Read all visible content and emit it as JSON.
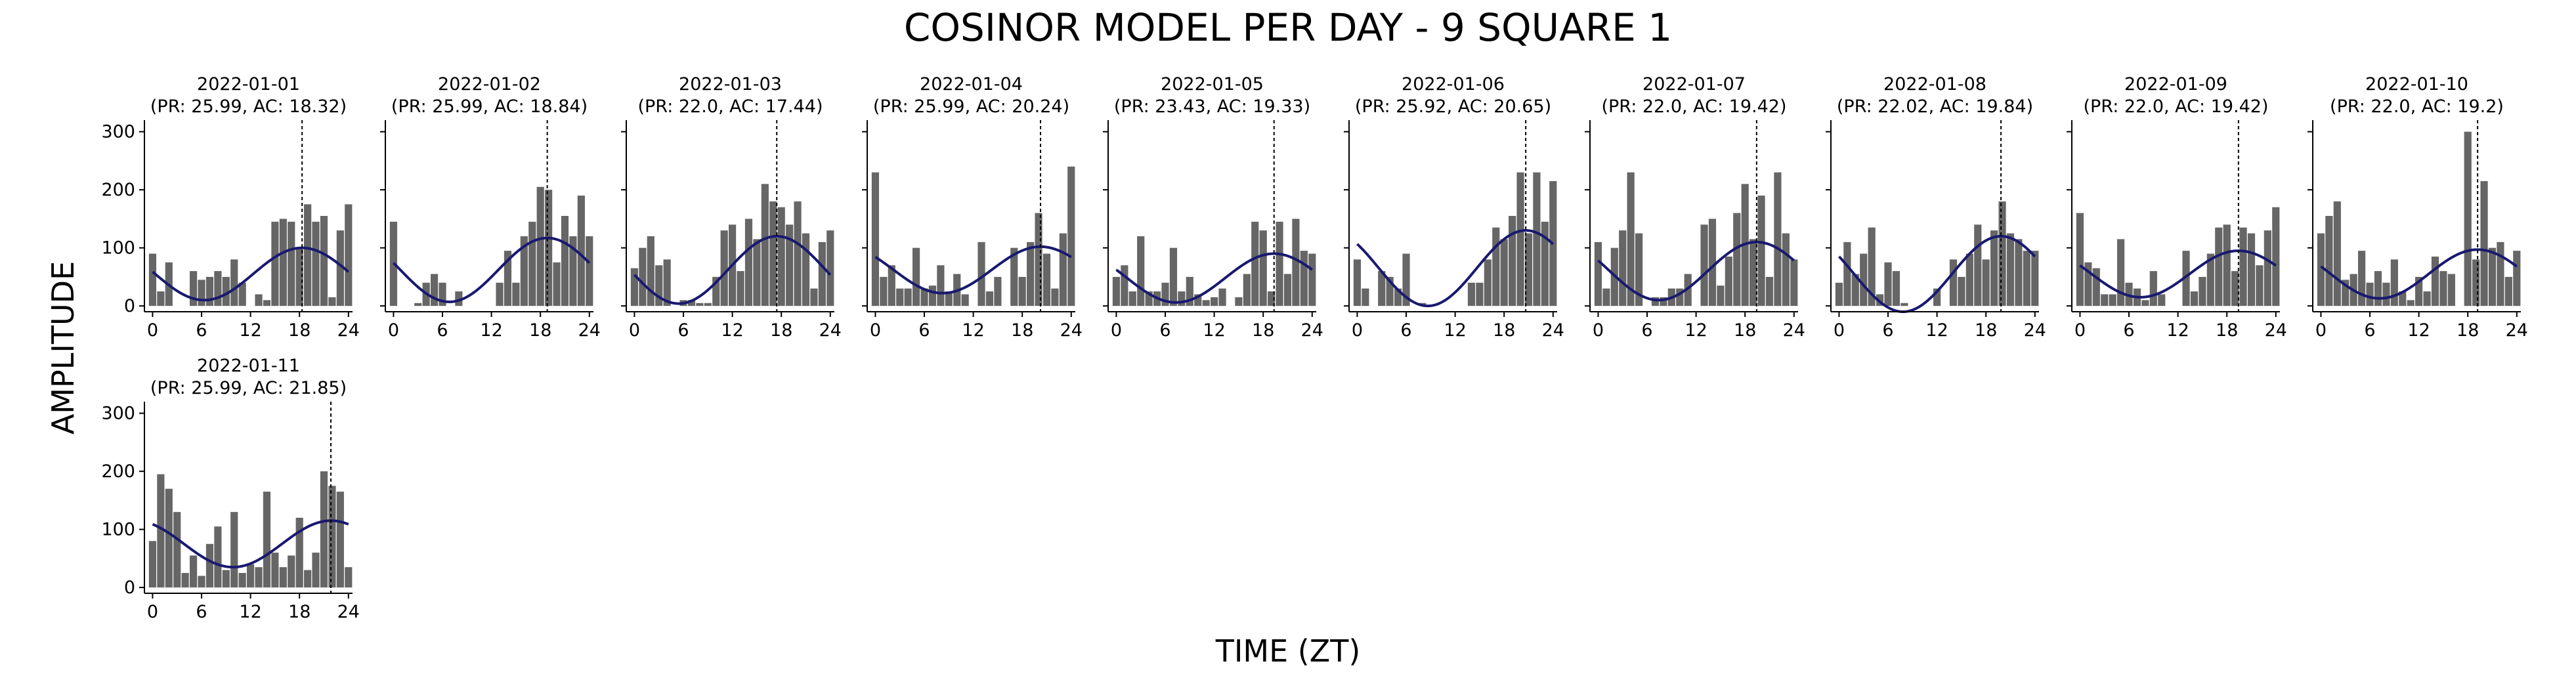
{
  "figure": {
    "title": "COSINOR MODEL PER DAY - 9 SQUARE 1",
    "xlabel": "TIME (ZT)",
    "ylabel": "AMPLITUDE"
  },
  "colors": {
    "bar": "#666666",
    "curve": "#191970",
    "marker": "#000000",
    "axis": "#000000"
  },
  "axes": {
    "x_ticks": [
      0,
      6,
      12,
      18,
      24
    ],
    "y_ticks": [
      0,
      100,
      200,
      300
    ],
    "xlim": [
      -1,
      24.5
    ],
    "ylim": [
      -10,
      320
    ]
  },
  "chart_data": [
    {
      "type": "bar",
      "date": "2022-01-01",
      "subtitle": "(PR: 25.99, AC: 18.32)",
      "x": [
        0,
        1,
        2,
        3,
        4,
        5,
        6,
        7,
        8,
        9,
        10,
        11,
        12,
        13,
        14,
        15,
        16,
        17,
        18,
        19,
        20,
        21,
        22,
        23,
        24
      ],
      "values": [
        90,
        25,
        75,
        0,
        0,
        60,
        45,
        50,
        60,
        50,
        80,
        40,
        0,
        20,
        10,
        145,
        150,
        145,
        100,
        175,
        145,
        155,
        15,
        130,
        175
      ],
      "cosinor": {
        "mesor": 55,
        "amplitude": 45,
        "acrophase": 18.32
      }
    },
    {
      "type": "bar",
      "date": "2022-01-02",
      "subtitle": "(PR: 25.99, AC: 18.84)",
      "x": [
        0,
        1,
        2,
        3,
        4,
        5,
        6,
        7,
        8,
        9,
        10,
        11,
        12,
        13,
        14,
        15,
        16,
        17,
        18,
        19,
        20,
        21,
        22,
        23,
        24
      ],
      "values": [
        145,
        0,
        0,
        5,
        40,
        55,
        40,
        0,
        25,
        0,
        0,
        0,
        0,
        40,
        95,
        40,
        120,
        145,
        205,
        200,
        75,
        155,
        120,
        190,
        120
      ],
      "cosinor": {
        "mesor": 62,
        "amplitude": 55,
        "acrophase": 18.84
      }
    },
    {
      "type": "bar",
      "date": "2022-01-03",
      "subtitle": "(PR: 22.0, AC: 17.44)",
      "x": [
        0,
        1,
        2,
        3,
        4,
        5,
        6,
        7,
        8,
        9,
        10,
        11,
        12,
        13,
        14,
        15,
        16,
        17,
        18,
        19,
        20,
        21,
        22,
        23,
        24
      ],
      "values": [
        65,
        100,
        120,
        70,
        80,
        0,
        10,
        10,
        5,
        5,
        50,
        130,
        140,
        60,
        150,
        115,
        210,
        180,
        170,
        140,
        180,
        125,
        30,
        110,
        130
      ],
      "cosinor": {
        "mesor": 62,
        "amplitude": 58,
        "acrophase": 17.44
      }
    },
    {
      "type": "bar",
      "date": "2022-01-04",
      "subtitle": "(PR: 25.99, AC: 20.24)",
      "x": [
        0,
        1,
        2,
        3,
        4,
        5,
        6,
        7,
        8,
        9,
        10,
        11,
        12,
        13,
        14,
        15,
        16,
        17,
        18,
        19,
        20,
        21,
        22,
        23,
        24
      ],
      "values": [
        230,
        50,
        70,
        30,
        30,
        100,
        30,
        35,
        70,
        25,
        55,
        20,
        0,
        110,
        25,
        50,
        0,
        100,
        50,
        110,
        160,
        90,
        30,
        125,
        240
      ],
      "cosinor": {
        "mesor": 62,
        "amplitude": 40,
        "acrophase": 20.24
      }
    },
    {
      "type": "bar",
      "date": "2022-01-05",
      "subtitle": "(PR: 23.43, AC: 19.33)",
      "x": [
        0,
        1,
        2,
        3,
        4,
        5,
        6,
        7,
        8,
        9,
        10,
        11,
        12,
        13,
        14,
        15,
        16,
        17,
        18,
        19,
        20,
        21,
        22,
        23,
        24
      ],
      "values": [
        50,
        70,
        25,
        120,
        25,
        25,
        40,
        100,
        25,
        50,
        20,
        10,
        15,
        30,
        0,
        15,
        55,
        145,
        130,
        25,
        145,
        55,
        150,
        95,
        90
      ],
      "cosinor": {
        "mesor": 48,
        "amplitude": 42,
        "acrophase": 19.33
      }
    },
    {
      "type": "bar",
      "date": "2022-01-06",
      "subtitle": "(PR: 25.92, AC: 20.65)",
      "x": [
        0,
        1,
        2,
        3,
        4,
        5,
        6,
        7,
        8,
        9,
        10,
        11,
        12,
        13,
        14,
        15,
        16,
        17,
        18,
        19,
        20,
        21,
        22,
        23,
        24
      ],
      "values": [
        80,
        30,
        0,
        60,
        50,
        30,
        90,
        0,
        5,
        0,
        0,
        0,
        0,
        0,
        40,
        40,
        80,
        135,
        115,
        155,
        230,
        125,
        230,
        145,
        215
      ],
      "cosinor": {
        "mesor": 65,
        "amplitude": 65,
        "acrophase": 20.65
      }
    },
    {
      "type": "bar",
      "date": "2022-01-07",
      "subtitle": "(PR: 22.0, AC: 19.42)",
      "x": [
        0,
        1,
        2,
        3,
        4,
        5,
        6,
        7,
        8,
        9,
        10,
        11,
        12,
        13,
        14,
        15,
        16,
        17,
        18,
        19,
        20,
        21,
        22,
        23,
        24
      ],
      "values": [
        110,
        30,
        100,
        130,
        230,
        125,
        0,
        15,
        15,
        30,
        30,
        55,
        0,
        140,
        150,
        35,
        85,
        160,
        210,
        115,
        190,
        50,
        230,
        125,
        80
      ],
      "cosinor": {
        "mesor": 60,
        "amplitude": 50,
        "acrophase": 19.42
      }
    },
    {
      "type": "bar",
      "date": "2022-01-08",
      "subtitle": "(PR: 22.02, AC: 19.84)",
      "x": [
        0,
        1,
        2,
        3,
        4,
        5,
        6,
        7,
        8,
        9,
        10,
        11,
        12,
        13,
        14,
        15,
        16,
        17,
        18,
        19,
        20,
        21,
        22,
        23,
        24
      ],
      "values": [
        40,
        110,
        55,
        90,
        135,
        20,
        75,
        60,
        5,
        0,
        0,
        0,
        30,
        0,
        80,
        50,
        90,
        140,
        80,
        130,
        180,
        125,
        115,
        95,
        95
      ],
      "cosinor": {
        "mesor": 55,
        "amplitude": 65,
        "acrophase": 19.84
      }
    },
    {
      "type": "bar",
      "date": "2022-01-09",
      "subtitle": "(PR: 22.0, AC: 19.42)",
      "x": [
        0,
        1,
        2,
        3,
        4,
        5,
        6,
        7,
        8,
        9,
        10,
        11,
        12,
        13,
        14,
        15,
        16,
        17,
        18,
        19,
        20,
        21,
        22,
        23,
        24
      ],
      "values": [
        160,
        75,
        65,
        20,
        20,
        115,
        40,
        30,
        10,
        60,
        20,
        0,
        0,
        95,
        25,
        50,
        90,
        135,
        140,
        60,
        135,
        125,
        70,
        130,
        170
      ],
      "cosinor": {
        "mesor": 55,
        "amplitude": 40,
        "acrophase": 19.42
      }
    },
    {
      "type": "bar",
      "date": "2022-01-10",
      "subtitle": "(PR: 22.0, AC: 19.2)",
      "x": [
        0,
        1,
        2,
        3,
        4,
        5,
        6,
        7,
        8,
        9,
        10,
        11,
        12,
        13,
        14,
        15,
        16,
        17,
        18,
        19,
        20,
        21,
        22,
        23,
        24
      ],
      "values": [
        125,
        155,
        180,
        45,
        55,
        95,
        40,
        60,
        40,
        80,
        25,
        10,
        50,
        25,
        85,
        60,
        55,
        0,
        300,
        80,
        215,
        100,
        110,
        50,
        95
      ],
      "cosinor": {
        "mesor": 55,
        "amplitude": 42,
        "acrophase": 19.2
      }
    },
    {
      "type": "bar",
      "date": "2022-01-11",
      "subtitle": "(PR: 25.99, AC: 21.85)",
      "x": [
        0,
        1,
        2,
        3,
        4,
        5,
        6,
        7,
        8,
        9,
        10,
        11,
        12,
        13,
        14,
        15,
        16,
        17,
        18,
        19,
        20,
        21,
        22,
        23,
        24
      ],
      "values": [
        80,
        195,
        170,
        130,
        25,
        55,
        20,
        75,
        105,
        30,
        130,
        25,
        40,
        35,
        165,
        60,
        35,
        55,
        120,
        30,
        60,
        200,
        175,
        165,
        35
      ],
      "cosinor": {
        "mesor": 75,
        "amplitude": 40,
        "acrophase": 21.85
      }
    }
  ]
}
